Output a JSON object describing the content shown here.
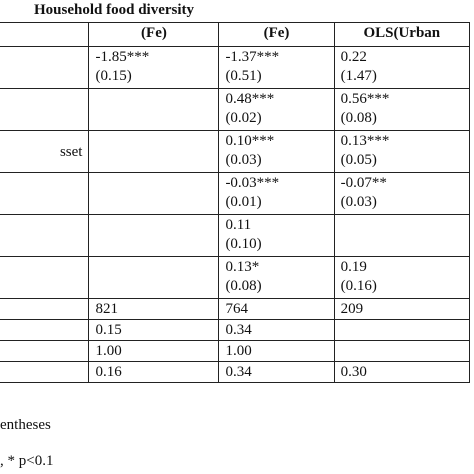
{
  "title": "Household food diversity",
  "columns": [
    "",
    "(Fe)",
    "(Fe)",
    "OLS(Urban"
  ],
  "rows": [
    {
      "label": "",
      "c1": [
        "-1.85***",
        "(0.15)"
      ],
      "c2": [
        "-1.37***",
        "(0.51)"
      ],
      "c3": [
        "0.22",
        "(1.47)"
      ]
    },
    {
      "label": "",
      "c1": [
        "",
        ""
      ],
      "c2": [
        "0.48***",
        "(0.02)"
      ],
      "c3": [
        "0.56***",
        "(0.08)"
      ]
    },
    {
      "label": "sset",
      "c1": [
        "",
        ""
      ],
      "c2": [
        "0.10***",
        "(0.03)"
      ],
      "c3": [
        "0.13***",
        "(0.05)"
      ]
    },
    {
      "label": "",
      "c1": [
        "",
        ""
      ],
      "c2": [
        "-0.03***",
        "(0.01)"
      ],
      "c3": [
        "-0.07**",
        "(0.03)"
      ]
    },
    {
      "label": "",
      "c1": [
        "",
        ""
      ],
      "c2": [
        "0.11",
        "(0.10)"
      ],
      "c3": [
        "",
        ""
      ]
    },
    {
      "label": "",
      "c1": [
        "",
        ""
      ],
      "c2": [
        "0.13*",
        "(0.08)"
      ],
      "c3": [
        "0.19",
        "(0.16)"
      ]
    }
  ],
  "stats": [
    {
      "label": "",
      "c1": "821",
      "c2": "764",
      "c3": "209"
    },
    {
      "label": "",
      "c1": "0.15",
      "c2": "0.34",
      "c3": ""
    },
    {
      "label": "",
      "c1": "1.00",
      "c2": "1.00",
      "c3": ""
    },
    {
      "label": "",
      "c1": "0.16",
      "c2": "0.34",
      "c3": "0.30"
    }
  ],
  "notes": [
    "entheses",
    ", * p<0.1"
  ]
}
